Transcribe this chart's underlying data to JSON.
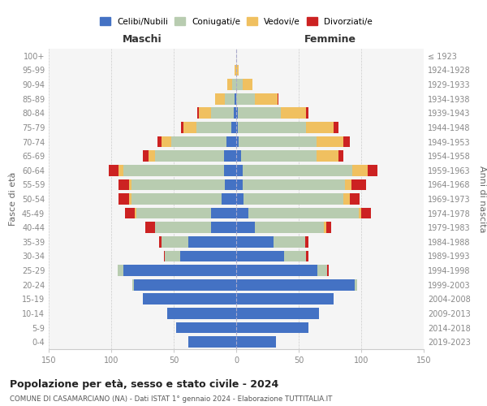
{
  "age_groups": [
    "0-4",
    "5-9",
    "10-14",
    "15-19",
    "20-24",
    "25-29",
    "30-34",
    "35-39",
    "40-44",
    "45-49",
    "50-54",
    "55-59",
    "60-64",
    "65-69",
    "70-74",
    "75-79",
    "80-84",
    "85-89",
    "90-94",
    "95-99",
    "100+"
  ],
  "birth_years": [
    "2019-2023",
    "2014-2018",
    "2009-2013",
    "2004-2008",
    "1999-2003",
    "1994-1998",
    "1989-1993",
    "1984-1988",
    "1979-1983",
    "1974-1978",
    "1969-1973",
    "1964-1968",
    "1959-1963",
    "1954-1958",
    "1949-1953",
    "1944-1948",
    "1939-1943",
    "1934-1938",
    "1929-1933",
    "1924-1928",
    "≤ 1923"
  ],
  "colors": {
    "celibe": "#4472C4",
    "coniugato": "#B8CCB0",
    "vedovo": "#F0C060",
    "divorziato": "#CC2222"
  },
  "maschi": {
    "celibe": [
      38,
      48,
      55,
      75,
      82,
      90,
      45,
      38,
      20,
      20,
      12,
      9,
      10,
      10,
      8,
      4,
      2,
      1,
      0,
      0,
      0
    ],
    "coniugato": [
      0,
      0,
      0,
      0,
      1,
      5,
      12,
      22,
      45,
      60,
      72,
      75,
      80,
      55,
      44,
      28,
      18,
      8,
      3,
      0,
      0
    ],
    "vedovo": [
      0,
      0,
      0,
      0,
      0,
      0,
      0,
      0,
      0,
      1,
      2,
      2,
      4,
      5,
      8,
      10,
      10,
      8,
      4,
      1,
      0
    ],
    "divorziato": [
      0,
      0,
      0,
      0,
      0,
      0,
      1,
      2,
      8,
      8,
      8,
      8,
      8,
      5,
      3,
      2,
      1,
      0,
      0,
      0,
      0
    ]
  },
  "femmine": {
    "nubile": [
      32,
      58,
      66,
      78,
      95,
      65,
      38,
      30,
      15,
      10,
      6,
      5,
      5,
      4,
      2,
      1,
      1,
      0,
      0,
      0,
      0
    ],
    "coniugata": [
      0,
      0,
      0,
      0,
      2,
      8,
      18,
      25,
      55,
      88,
      80,
      82,
      88,
      60,
      62,
      55,
      35,
      15,
      5,
      0,
      0
    ],
    "vedova": [
      0,
      0,
      0,
      0,
      0,
      0,
      0,
      0,
      2,
      2,
      5,
      5,
      12,
      18,
      22,
      22,
      20,
      18,
      8,
      2,
      0
    ],
    "divorziata": [
      0,
      0,
      0,
      0,
      0,
      1,
      2,
      3,
      4,
      8,
      8,
      12,
      8,
      4,
      5,
      4,
      2,
      1,
      0,
      0,
      0
    ]
  },
  "xlim": 150,
  "title": "Popolazione per età, sesso e stato civile - 2024",
  "subtitle": "COMUNE DI CASAMARCIANO (NA) - Dati ISTAT 1° gennaio 2024 - Elaborazione TUTTITALIA.IT",
  "xlabel_left": "Maschi",
  "xlabel_right": "Femmine",
  "ylabel_left": "Fasce di età",
  "ylabel_right": "Anni di nascita",
  "legend_labels": [
    "Celibi/Nubili",
    "Coniugati/e",
    "Vedovi/e",
    "Divorziati/e"
  ],
  "bg_color": "#FFFFFF",
  "grid_color": "#CCCCCC",
  "tick_color": "#888888"
}
